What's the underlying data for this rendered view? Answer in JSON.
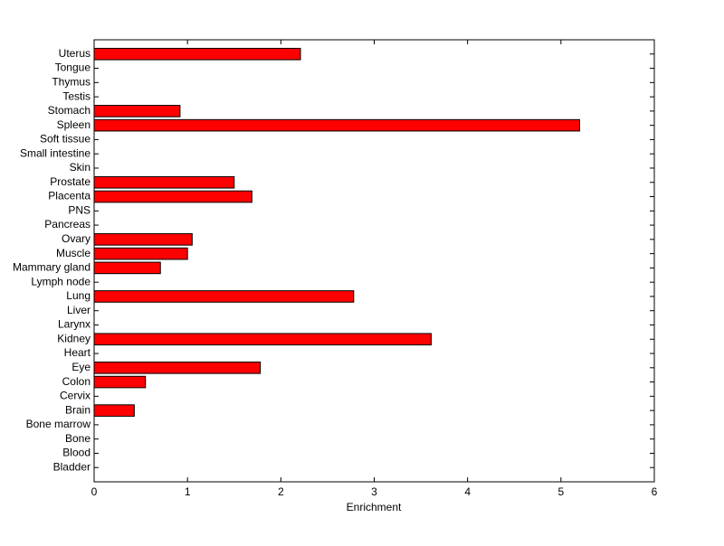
{
  "chart_data": {
    "type": "barh",
    "xlabel": "Enrichment",
    "categories": [
      "Uterus",
      "Tongue",
      "Thymus",
      "Testis",
      "Stomach",
      "Spleen",
      "Soft tissue",
      "Small intestine",
      "Skin",
      "Prostate",
      "Placenta",
      "PNS",
      "Pancreas",
      "Ovary",
      "Muscle",
      "Mammary gland",
      "Lymph node",
      "Lung",
      "Liver",
      "Larynx",
      "Kidney",
      "Heart",
      "Eye",
      "Colon",
      "Cervix",
      "Brain",
      "Bone marrow",
      "Bone",
      "Blood",
      "Bladder"
    ],
    "values": [
      2.21,
      0,
      0,
      0,
      0.92,
      5.2,
      0,
      0,
      0,
      1.5,
      1.69,
      0,
      0,
      1.05,
      1.0,
      0.71,
      0,
      2.78,
      0,
      0,
      3.61,
      0,
      1.78,
      0.55,
      0,
      0.43,
      0,
      0,
      0,
      0
    ],
    "color": "#ff0000",
    "xlim": [
      0,
      6
    ],
    "xticks": [
      0,
      1,
      2,
      3,
      4,
      5,
      6
    ]
  }
}
